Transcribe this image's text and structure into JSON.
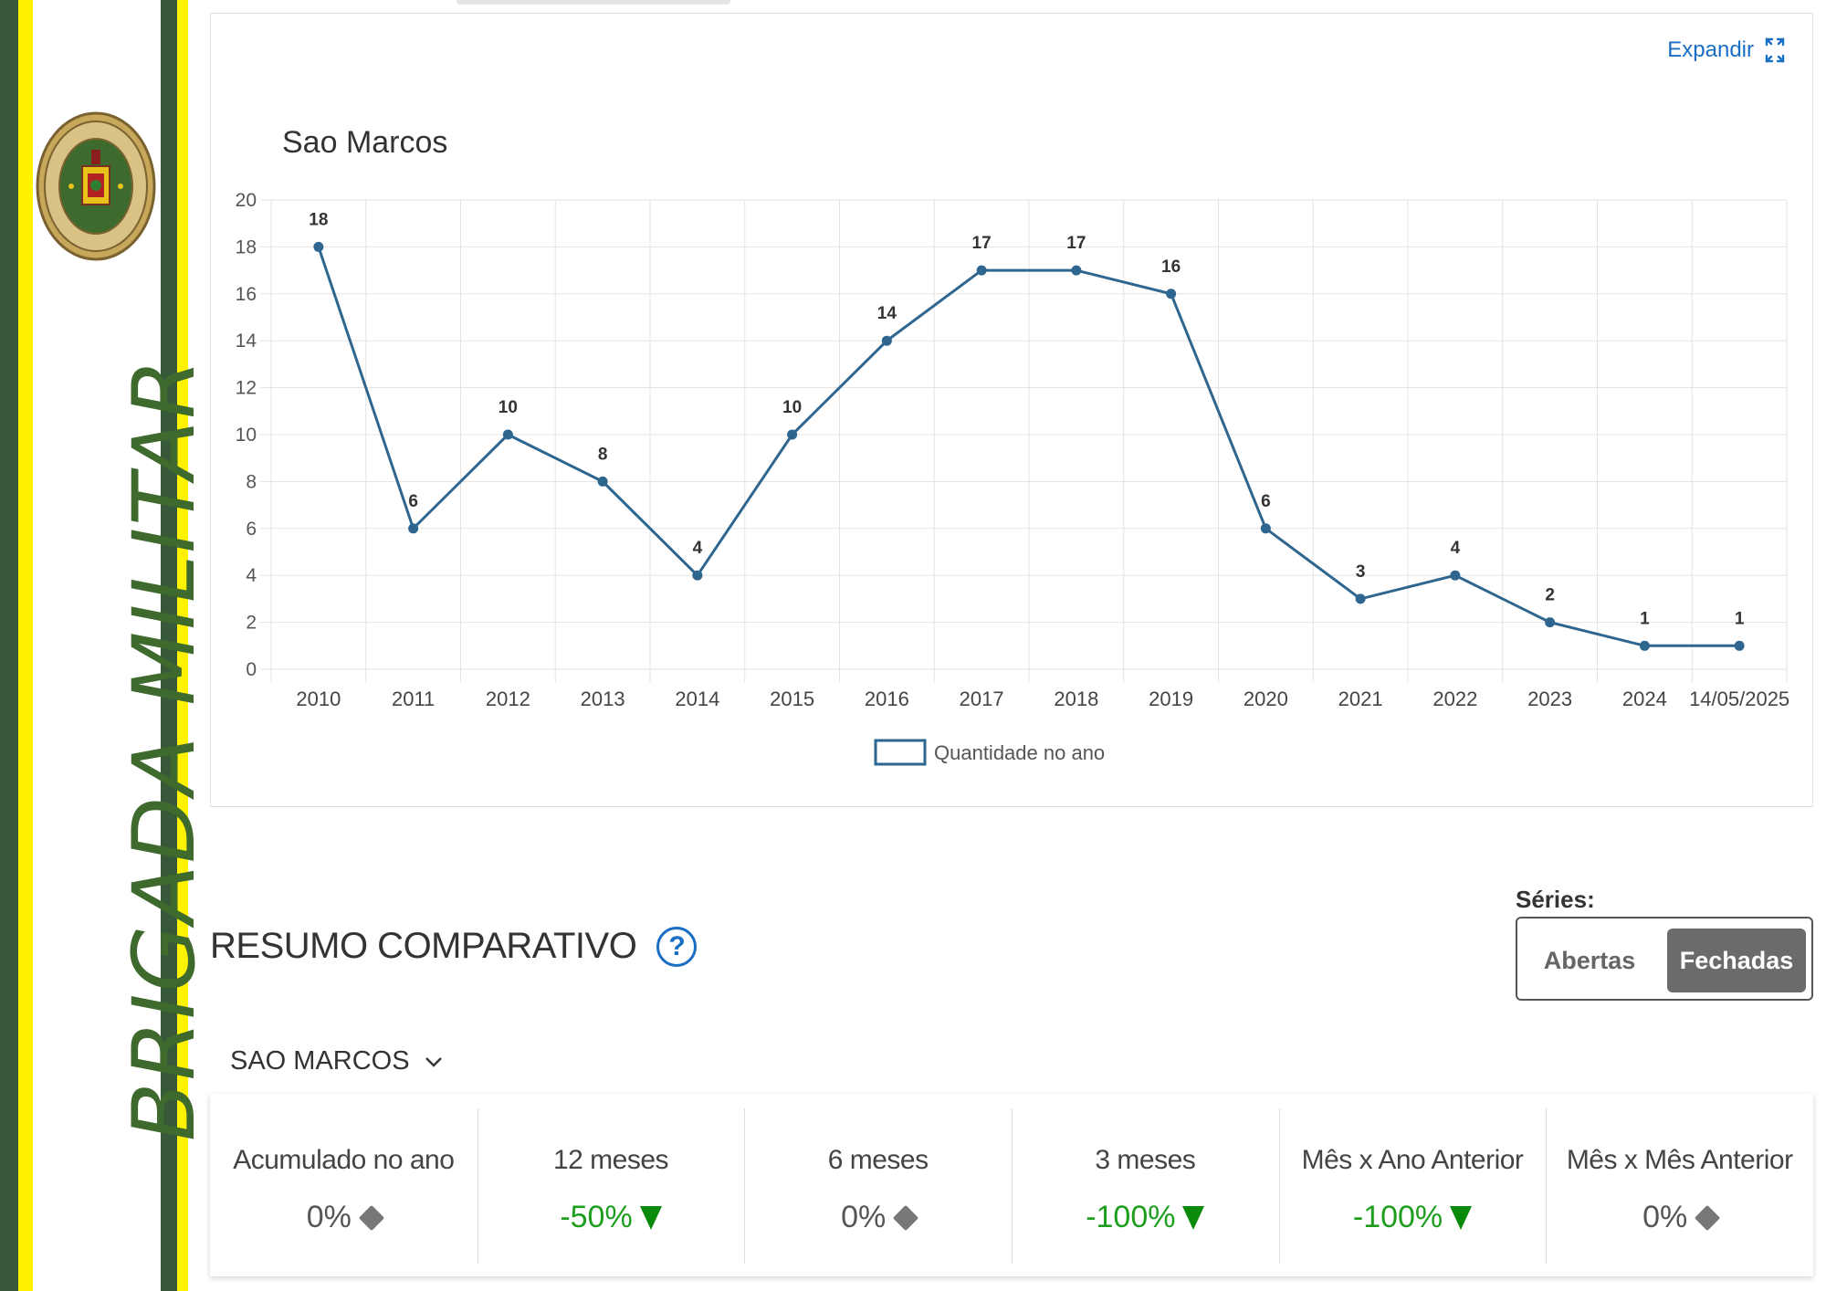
{
  "brand": {
    "vertical_text": "BRIGADA MILITAR"
  },
  "chart_panel": {
    "expand_label": "Expandir"
  },
  "chart_data": {
    "type": "line",
    "title": "Sao Marcos",
    "categories": [
      "2010",
      "2011",
      "2012",
      "2013",
      "2014",
      "2015",
      "2016",
      "2017",
      "2018",
      "2019",
      "2020",
      "2021",
      "2022",
      "2023",
      "2024",
      "14/05/2025"
    ],
    "series": [
      {
        "name": "Quantidade no ano",
        "values": [
          18,
          6,
          10,
          8,
          4,
          10,
          14,
          17,
          17,
          16,
          6,
          3,
          4,
          2,
          1,
          1
        ]
      }
    ],
    "ylim": [
      0,
      20
    ],
    "yticks": [
      0,
      2,
      4,
      6,
      8,
      10,
      12,
      14,
      16,
      18,
      20
    ],
    "grid": true,
    "legend": "bottom",
    "color": "#2e6690"
  },
  "resumo": {
    "title": "RESUMO COMPARATIVO",
    "series_label": "Séries:",
    "toggle": {
      "abertas": "Abertas",
      "fechadas": "Fechadas",
      "selected": "Fechadas"
    },
    "region": "SAO MARCOS",
    "cards": [
      {
        "label": "Acumulado no ano",
        "value": "0%",
        "trend": "neutral"
      },
      {
        "label": "12 meses",
        "value": "-50%",
        "trend": "down"
      },
      {
        "label": "6 meses",
        "value": "0%",
        "trend": "neutral"
      },
      {
        "label": "3 meses",
        "value": "-100%",
        "trend": "down"
      },
      {
        "label": "Mês x Ano Anterior",
        "value": "-100%",
        "trend": "down"
      },
      {
        "label": "Mês x Mês Anterior",
        "value": "0%",
        "trend": "neutral"
      }
    ]
  },
  "colors": {
    "accent": "#1a6fc4",
    "trend_down": "#1e9e1e",
    "sidebar_green": "#38583a",
    "sidebar_yellow": "#fff200"
  }
}
